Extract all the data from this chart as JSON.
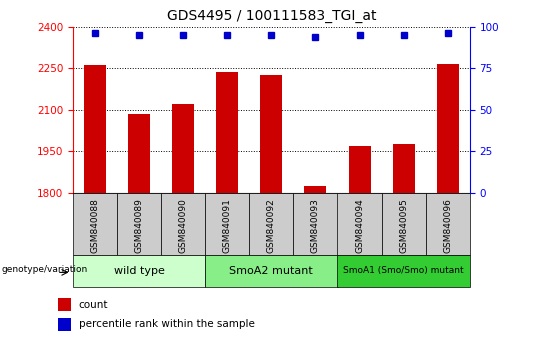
{
  "title": "GDS4495 / 100111583_TGI_at",
  "samples": [
    "GSM840088",
    "GSM840089",
    "GSM840090",
    "GSM840091",
    "GSM840092",
    "GSM840093",
    "GSM840094",
    "GSM840095",
    "GSM840096"
  ],
  "counts": [
    2262,
    2085,
    2120,
    2235,
    2225,
    1825,
    1968,
    1978,
    2265
  ],
  "percentiles": [
    96,
    95,
    95,
    95,
    95,
    94,
    95,
    95,
    96
  ],
  "ylim_left": [
    1800,
    2400
  ],
  "ylim_right": [
    0,
    100
  ],
  "yticks_left": [
    1800,
    1950,
    2100,
    2250,
    2400
  ],
  "yticks_right": [
    0,
    25,
    50,
    75,
    100
  ],
  "bar_color": "#cc0000",
  "dot_color": "#0000cc",
  "groups": [
    {
      "label": "wild type",
      "start": 0,
      "end": 3,
      "color": "#ccffcc"
    },
    {
      "label": "SmoA2 mutant",
      "start": 3,
      "end": 6,
      "color": "#88ee88"
    },
    {
      "label": "SmoA1 (Smo/Smo) mutant",
      "start": 6,
      "end": 9,
      "color": "#33cc33"
    }
  ],
  "group_label": "genotype/variation",
  "legend_count_label": "count",
  "legend_pct_label": "percentile rank within the sample",
  "bar_width": 0.5,
  "tick_area_color": "#cccccc",
  "title_fontsize": 10,
  "tick_fontsize": 7.5
}
